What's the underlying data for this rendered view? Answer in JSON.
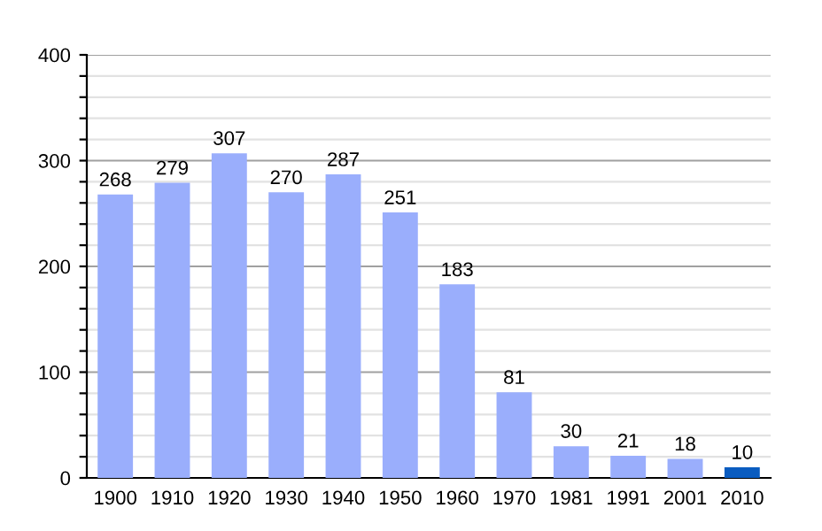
{
  "chart_data": {
    "type": "bar",
    "categories": [
      "1900",
      "1910",
      "1920",
      "1930",
      "1940",
      "1950",
      "1960",
      "1970",
      "1981",
      "1991",
      "2001",
      "2010"
    ],
    "values": [
      268,
      279,
      307,
      270,
      287,
      251,
      183,
      81,
      30,
      21,
      18,
      10
    ],
    "colors": [
      "#9aaefc",
      "#9aaefc",
      "#9aaefc",
      "#9aaefc",
      "#9aaefc",
      "#9aaefc",
      "#9aaefc",
      "#9aaefc",
      "#9aaefc",
      "#9aaefc",
      "#9aaefc",
      "#0a5cc0"
    ],
    "data_labels": true,
    "ylim": [
      0,
      400
    ],
    "yticks": [
      0,
      {
        "value": 20,
        "label": null
      },
      {
        "value": 40,
        "label": null
      },
      {
        "value": 60,
        "label": null
      },
      {
        "value": 80,
        "label": null
      },
      100,
      {
        "value": 120,
        "label": null
      },
      {
        "value": 140,
        "label": null
      },
      {
        "value": 160,
        "label": null
      },
      {
        "value": 180,
        "label": null
      },
      200,
      {
        "value": 220,
        "label": null
      },
      {
        "value": 240,
        "label": null
      },
      {
        "value": 260,
        "label": null
      },
      {
        "value": 280,
        "label": null
      },
      300,
      {
        "value": 320,
        "label": null
      },
      {
        "value": 340,
        "label": null
      },
      {
        "value": 360,
        "label": null
      },
      {
        "value": 380,
        "label": null
      },
      400
    ],
    "grid": "y"
  }
}
